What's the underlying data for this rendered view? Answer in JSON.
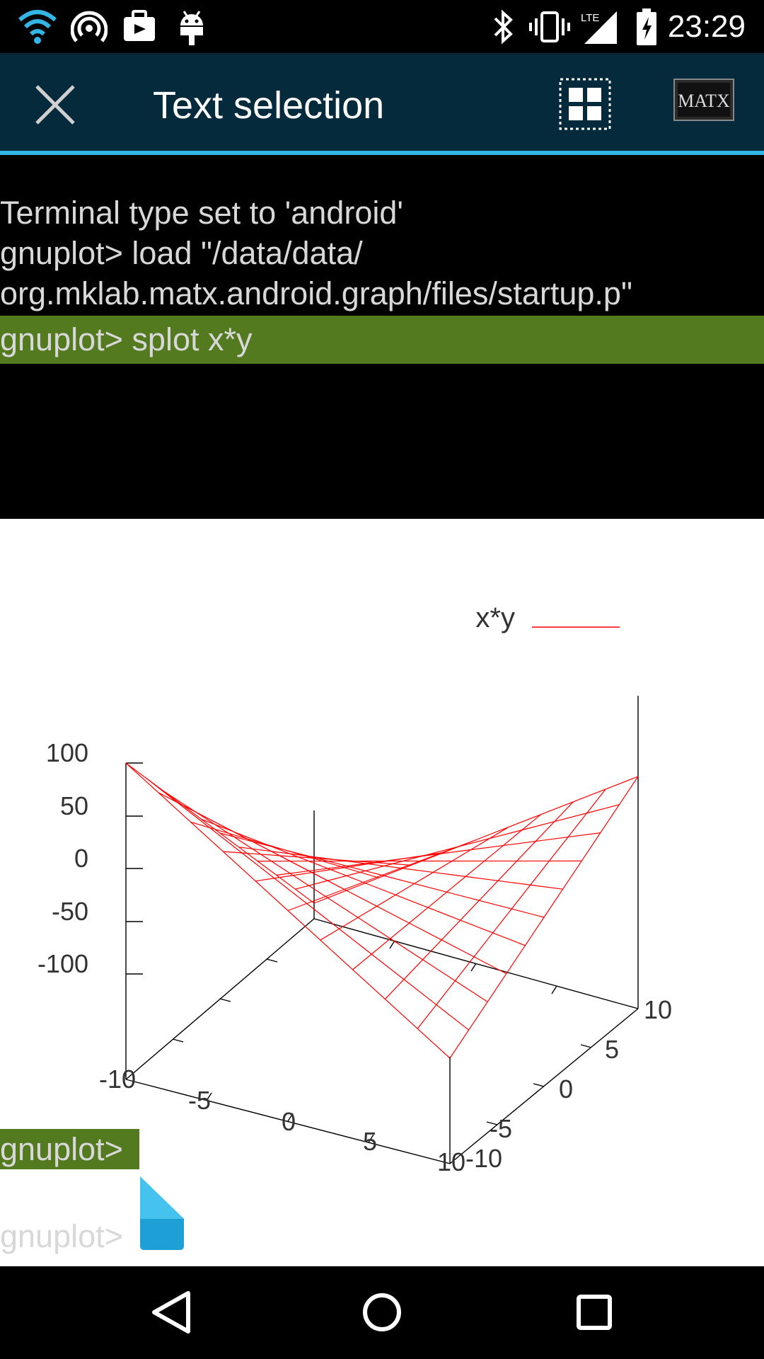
{
  "status_bar": {
    "time": "23:29",
    "network_label": "LTE",
    "icons": [
      "wifi-icon",
      "hotspot-icon",
      "briefcase-icon",
      "android-debug-icon",
      "bluetooth-icon",
      "vibrate-icon",
      "cell-signal-icon",
      "battery-charging-icon"
    ]
  },
  "action_bar": {
    "title": "Text selection",
    "close_icon": "close-icon",
    "select_all_icon": "select-all-icon",
    "app_logo_text": "MATX",
    "bg_color": "#052a3b",
    "accent_color": "#33b5e5"
  },
  "terminal": {
    "lines": [
      "Terminal type set to 'android'",
      "gnuplot> load \"/data/data/",
      "org.mklab.matx.android.graph/files/startup.p\"",
      "gnuplot> splot x*y",
      "gnuplot>",
      "gnuplot>"
    ],
    "highlight_color": "#547a20"
  },
  "chart_data": {
    "type": "surface",
    "function": "x*y",
    "legend": [
      "x*y"
    ],
    "series_color": "#ff0000",
    "xlim": [
      -10,
      10
    ],
    "ylim": [
      -10,
      10
    ],
    "zlim": [
      -100,
      100
    ],
    "x_ticks": [
      "-10",
      "-5",
      "0",
      "5",
      "10"
    ],
    "y_ticks": [
      "-10",
      "-5",
      "0",
      "5",
      "10"
    ],
    "z_ticks": [
      "100",
      "50",
      "0",
      "-50",
      "-100"
    ],
    "grid_samples": 10
  },
  "nav_bar": {
    "buttons": [
      "back-icon",
      "home-icon",
      "recents-icon"
    ]
  }
}
